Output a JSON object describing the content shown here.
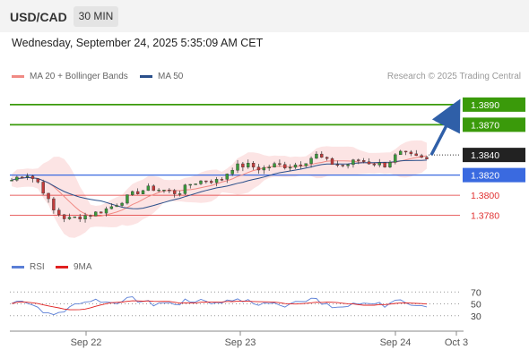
{
  "header": {
    "pair": "USD/CAD",
    "timeframe": "30 MIN"
  },
  "datetime": "Wednesday, September 24, 2025 5:35:09 AM CET",
  "legend": {
    "ma20": {
      "label": "MA 20 + Bollinger Bands",
      "color": "#f08a84"
    },
    "ma50": {
      "label": "MA 50",
      "color": "#2a4f8a"
    },
    "rsi": {
      "label": "RSI",
      "color": "#5b7fd6"
    },
    "ma9": {
      "label": "9MA",
      "color": "#e02020"
    }
  },
  "copyright": "Research © 2025 Trading Central",
  "chart_data": {
    "type": "line",
    "price_levels": [
      {
        "value": 1.389,
        "label": "1.3890",
        "kind": "target",
        "color": "#3a9a0a"
      },
      {
        "value": 1.387,
        "label": "1.3870",
        "kind": "target",
        "color": "#3a9a0a"
      },
      {
        "value": 1.384,
        "label": "1.3840",
        "kind": "last_price",
        "color": "#222222"
      },
      {
        "value": 1.382,
        "label": "1.3820",
        "kind": "pivot",
        "color": "#3a6ae0"
      },
      {
        "value": 1.38,
        "label": "1.3800",
        "kind": "support",
        "color": "#e03030"
      },
      {
        "value": 1.378,
        "label": "1.3780",
        "kind": "support",
        "color": "#e03030"
      }
    ],
    "ylim": [
      1.3745,
      1.3905
    ],
    "x_ticks": [
      "Sep 22",
      "Sep 23",
      "Sep 24",
      "Oct 3"
    ],
    "price_series_approx": [
      1.3815,
      1.3822,
      1.3812,
      1.3785,
      1.3776,
      1.3779,
      1.3782,
      1.3787,
      1.3795,
      1.3803,
      1.3807,
      1.3805,
      1.3802,
      1.3812,
      1.3815,
      1.3814,
      1.3828,
      1.383,
      1.3826,
      1.383,
      1.3829,
      1.3832,
      1.384,
      1.3832,
      1.3829,
      1.3835,
      1.3832,
      1.383,
      1.3842,
      1.3838,
      1.3835
    ],
    "forecast_arrow": {
      "from": 1.384,
      "to": 1.389
    },
    "rsi": {
      "levels": [
        70,
        50,
        30
      ]
    }
  }
}
